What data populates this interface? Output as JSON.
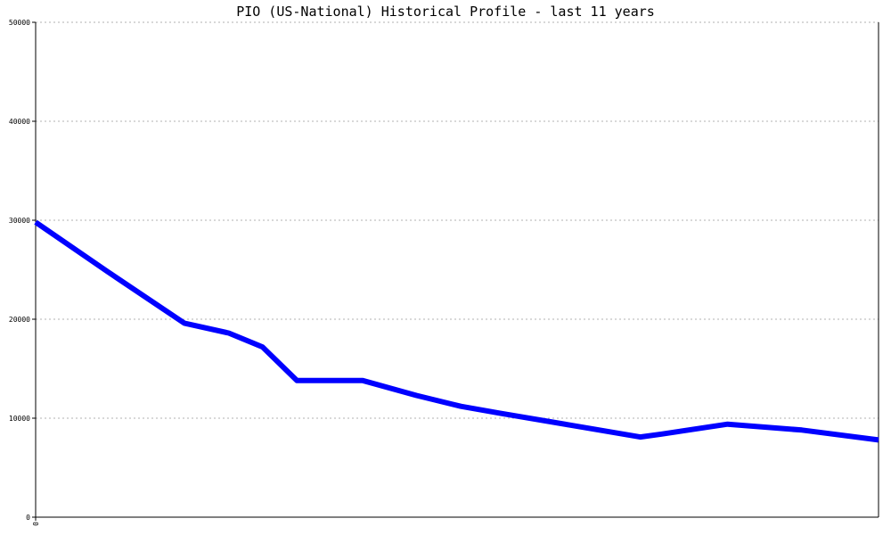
{
  "chart_data": {
    "type": "line",
    "title": "PIO (US-National) Historical Profile - last 11 years",
    "xlabel": "",
    "ylabel": "",
    "x_tick_labels": [
      "0"
    ],
    "y_tick_labels": [
      "0",
      "10000",
      "20000",
      "30000",
      "40000",
      "50000"
    ],
    "y_ticks": [
      0,
      10000,
      20000,
      30000,
      40000,
      50000
    ],
    "xlim": [
      0,
      11
    ],
    "ylim": [
      0,
      50000
    ],
    "grid": true,
    "grid_style": "dotted-horizontal",
    "legend": "none",
    "series": [
      {
        "x": [
          0,
          0.94,
          1.94,
          2.52,
          2.96,
          3.41,
          4.27,
          4.97,
          5.55,
          6.06,
          6.98,
          7.89,
          8.17,
          9.03,
          10.0,
          11.0
        ],
        "values": [
          29800,
          24800,
          19600,
          18600,
          17200,
          13800,
          13800,
          12300,
          11200,
          10500,
          9300,
          8100,
          8400,
          9400,
          8800,
          7800
        ],
        "color": "#0000ff"
      }
    ]
  }
}
